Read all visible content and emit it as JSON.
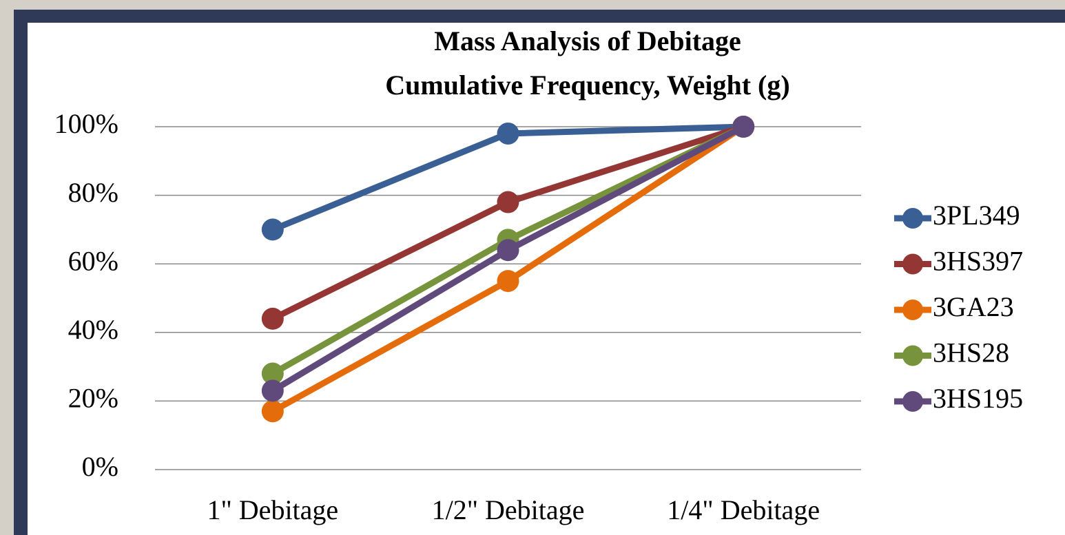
{
  "chart_data": {
    "type": "line",
    "title": "Mass Analysis of Debitage",
    "subtitle": "Cumulative Frequency, Weight (g)",
    "categories": [
      "1\" Debitage",
      "1/2\" Debitage",
      "1/4\" Debitage"
    ],
    "series": [
      {
        "name": "3PL349",
        "color": "#3a5f94",
        "values": [
          70,
          98,
          100
        ]
      },
      {
        "name": "3HS397",
        "color": "#943634",
        "values": [
          44,
          78,
          100
        ]
      },
      {
        "name": "3GA23",
        "color": "#e46c0a",
        "values": [
          17,
          55,
          100
        ]
      },
      {
        "name": "3HS28",
        "color": "#77933c",
        "values": [
          28,
          67,
          100
        ]
      },
      {
        "name": "3HS195",
        "color": "#604a7b",
        "values": [
          23,
          64,
          100
        ]
      }
    ],
    "ylim": [
      0,
      100
    ],
    "yticks": [
      {
        "value": 0,
        "label": "0%"
      },
      {
        "value": 20,
        "label": "20%"
      },
      {
        "value": 40,
        "label": "40%"
      },
      {
        "value": 60,
        "label": "60%"
      },
      {
        "value": 80,
        "label": "80%"
      },
      {
        "value": 100,
        "label": "100%"
      }
    ],
    "grid": true,
    "legend": "right"
  }
}
